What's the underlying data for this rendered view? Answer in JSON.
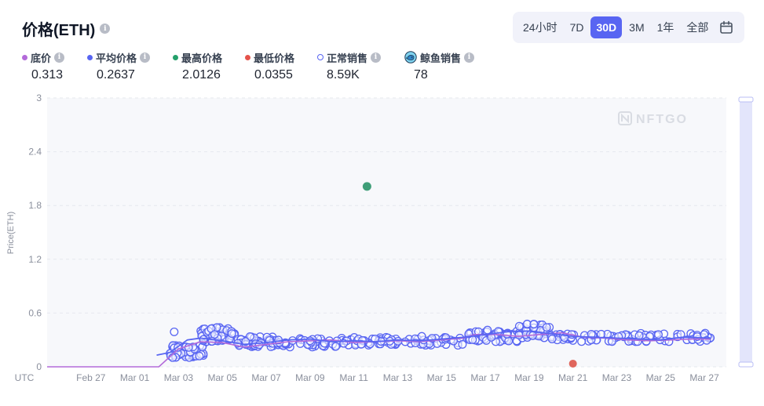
{
  "header": {
    "title": "价格(ETH)",
    "info_glyph": "i",
    "ranges": [
      {
        "label": "24小时",
        "active": false
      },
      {
        "label": "7D",
        "active": false
      },
      {
        "label": "30D",
        "active": true
      },
      {
        "label": "3M",
        "active": false
      },
      {
        "label": "1年",
        "active": false
      },
      {
        "label": "全部",
        "active": false
      }
    ],
    "calendar_icon": "calendar-icon"
  },
  "stats": [
    {
      "label": "底价",
      "value": "0.313",
      "color": "#b36ad9",
      "marker": "dot",
      "info": true
    },
    {
      "label": "平均价格",
      "value": "0.2637",
      "color": "#5865f2",
      "marker": "dot",
      "info": true
    },
    {
      "label": "最高价格",
      "value": "2.0126",
      "color": "#24a06b",
      "marker": "dot",
      "info": false
    },
    {
      "label": "最低价格",
      "value": "0.0355",
      "color": "#e5534b",
      "marker": "dot",
      "info": false
    },
    {
      "label": "正常销售",
      "value": "8.59K",
      "color": "#5865f2",
      "marker": "ring",
      "info": true
    },
    {
      "label": "鲸鱼销售",
      "value": "78",
      "color": "#3aa6d9",
      "marker": "whale-icon",
      "info": true
    }
  ],
  "watermark": "NFTGO",
  "chart_data": {
    "type": "scatter",
    "ylabel": "Price(ETH)",
    "xlabel": "UTC",
    "ylim": [
      0,
      3
    ],
    "yticks": [
      "0",
      "0.6",
      "1.2",
      "1.8",
      "2.4",
      "3"
    ],
    "x_domain": [
      "2023-02-25",
      "2023-03-28"
    ],
    "xticks": [
      "Feb 27",
      "Mar 01",
      "Mar 03",
      "Mar 05",
      "Mar 07",
      "Mar 09",
      "Mar 11",
      "Mar 13",
      "Mar 15",
      "Mar 17",
      "Mar 19",
      "Mar 21",
      "Mar 23",
      "Mar 25",
      "Mar 27"
    ],
    "grid": true,
    "floor_price": {
      "name": "底价",
      "color": "#b36ad9",
      "points": [
        [
          -2,
          0
        ],
        [
          0,
          0
        ],
        [
          5.1,
          0
        ],
        [
          6.0,
          0.2
        ],
        [
          7.0,
          0.28
        ],
        [
          8.0,
          0.27
        ],
        [
          9.0,
          0.22
        ],
        [
          10,
          0.25
        ],
        [
          11,
          0.28
        ],
        [
          12,
          0.29
        ],
        [
          13,
          0.3
        ],
        [
          14,
          0.27
        ],
        [
          15,
          0.28
        ],
        [
          16,
          0.29
        ],
        [
          17,
          0.28
        ],
        [
          18,
          0.3
        ],
        [
          19,
          0.32
        ],
        [
          19.5,
          0.36
        ],
        [
          20.5,
          0.36
        ],
        [
          21.5,
          0.34
        ],
        [
          22.5,
          0.36
        ],
        [
          23.5,
          0.38
        ],
        [
          24.5,
          0.33
        ],
        [
          25.5,
          0.32
        ],
        [
          26.5,
          0.3
        ],
        [
          27.5,
          0.29
        ],
        [
          28.5,
          0.3
        ],
        [
          29.5,
          0.31
        ],
        [
          30.3,
          0.31
        ]
      ]
    },
    "average_price": {
      "name": "平均价格",
      "color": "#5865f2",
      "points": [
        [
          5.0,
          0.13
        ],
        [
          5.6,
          0.16
        ],
        [
          6.4,
          0.3
        ],
        [
          7.0,
          0.32
        ],
        [
          8.0,
          0.29
        ],
        [
          9.0,
          0.25
        ],
        [
          10,
          0.27
        ],
        [
          11,
          0.3
        ],
        [
          12,
          0.31
        ],
        [
          13,
          0.28
        ],
        [
          14,
          0.29
        ],
        [
          15,
          0.28
        ],
        [
          16,
          0.3
        ],
        [
          17,
          0.29
        ],
        [
          18,
          0.31
        ],
        [
          19,
          0.33
        ],
        [
          20,
          0.36
        ],
        [
          21,
          0.39
        ],
        [
          22,
          0.4
        ],
        [
          23,
          0.37
        ],
        [
          24,
          0.34
        ],
        [
          25,
          0.33
        ],
        [
          26,
          0.32
        ],
        [
          27,
          0.31
        ],
        [
          28,
          0.3
        ],
        [
          29,
          0.33
        ],
        [
          30.3,
          0.32
        ]
      ]
    },
    "max_sale": {
      "name": "最高价格",
      "x": 14.6,
      "y": 2.0126,
      "color": "#3f9e78"
    },
    "min_sale": {
      "name": "最低价格",
      "x": 24.0,
      "y": 0.0355,
      "color": "#e0665c"
    },
    "normal_sales": {
      "name": "正常销售",
      "color": "#5865f2",
      "clusters": [
        {
          "x_from": 5.6,
          "x_to": 7.2,
          "y_min": 0.1,
          "y_max": 0.24,
          "count": 60
        },
        {
          "x_from": 7.0,
          "x_to": 8.6,
          "y_min": 0.28,
          "y_max": 0.44,
          "count": 55
        },
        {
          "x_from": 8.6,
          "x_to": 10.5,
          "y_min": 0.22,
          "y_max": 0.34,
          "count": 45
        },
        {
          "x_from": 10.5,
          "x_to": 14.0,
          "y_min": 0.22,
          "y_max": 0.32,
          "count": 55
        },
        {
          "x_from": 14.0,
          "x_to": 19.0,
          "y_min": 0.24,
          "y_max": 0.33,
          "count": 70
        },
        {
          "x_from": 19.0,
          "x_to": 21.5,
          "y_min": 0.28,
          "y_max": 0.4,
          "count": 45
        },
        {
          "x_from": 21.5,
          "x_to": 23.0,
          "y_min": 0.32,
          "y_max": 0.48,
          "count": 45
        },
        {
          "x_from": 23.0,
          "x_to": 27.0,
          "y_min": 0.28,
          "y_max": 0.37,
          "count": 50
        },
        {
          "x_from": 27.0,
          "x_to": 30.3,
          "y_min": 0.28,
          "y_max": 0.38,
          "count": 35
        }
      ],
      "outliers": [
        [
          5.8,
          0.39
        ],
        [
          17.1,
          0.34
        ],
        [
          22.8,
          0.44
        ],
        [
          20.1,
          0.41
        ]
      ]
    }
  }
}
